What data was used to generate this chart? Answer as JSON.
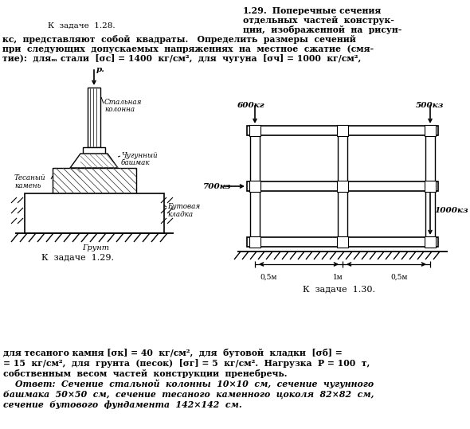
{
  "bg_color": "#ffffff",
  "fig_width": 5.9,
  "fig_height": 5.39,
  "dpi": 100,
  "top_left_caption": "К  задаче  1.28.",
  "bottom_text_lines": [
    "для тесаного камня [σк] = 40  кг/см²,  для  бутовой  кладки  [σб] =",
    "= 15  кг/см²,  для  грунта  (песок)  [σг] = 5  кг/см².  Нагрузка  P = 100  т,",
    "собственным  весом  частей  конструкции  пренебречь.",
    "    Ответ:  Сечение  стальной  колонны  10×10  см,  сечение  чугунного",
    "башмака  50×50  см,  сечение  тесаного  каменного  цоколя  82×82  см,",
    "сечение  бутового  фундамента  142×142  см."
  ],
  "caption_left": "К  задаче  1.29.",
  "caption_right": "К  задаче  1.30."
}
